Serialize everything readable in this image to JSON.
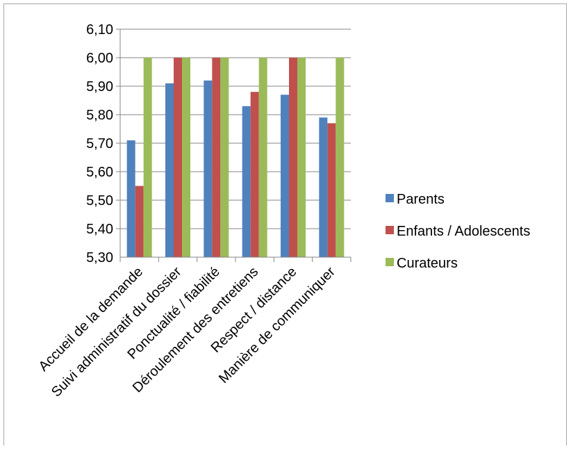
{
  "chart_data": {
    "type": "bar",
    "categories": [
      "Accueil de la demande",
      "Suivi administratif du dossier",
      "Ponctualité / fiabilité",
      "Déroulement des entretiens",
      "Respect / distance",
      "Manière de communiquer"
    ],
    "series": [
      {
        "name": "Parents",
        "color": "#4f81bd",
        "values": [
          5.71,
          5.91,
          5.92,
          5.83,
          5.87,
          5.79
        ]
      },
      {
        "name": "Enfants / Adolescents",
        "color": "#c0504d",
        "values": [
          5.55,
          6.0,
          6.0,
          5.88,
          6.0,
          5.77
        ]
      },
      {
        "name": "Curateurs",
        "color": "#9bbb59",
        "values": [
          6.0,
          6.0,
          6.0,
          6.0,
          6.0,
          6.0
        ]
      }
    ],
    "ylim": [
      5.3,
      6.1
    ],
    "yticks": [
      "5,30",
      "5,40",
      "5,50",
      "5,60",
      "5,70",
      "5,80",
      "5,90",
      "6,00",
      "6,10"
    ],
    "grid": true,
    "legend_position": "right"
  }
}
